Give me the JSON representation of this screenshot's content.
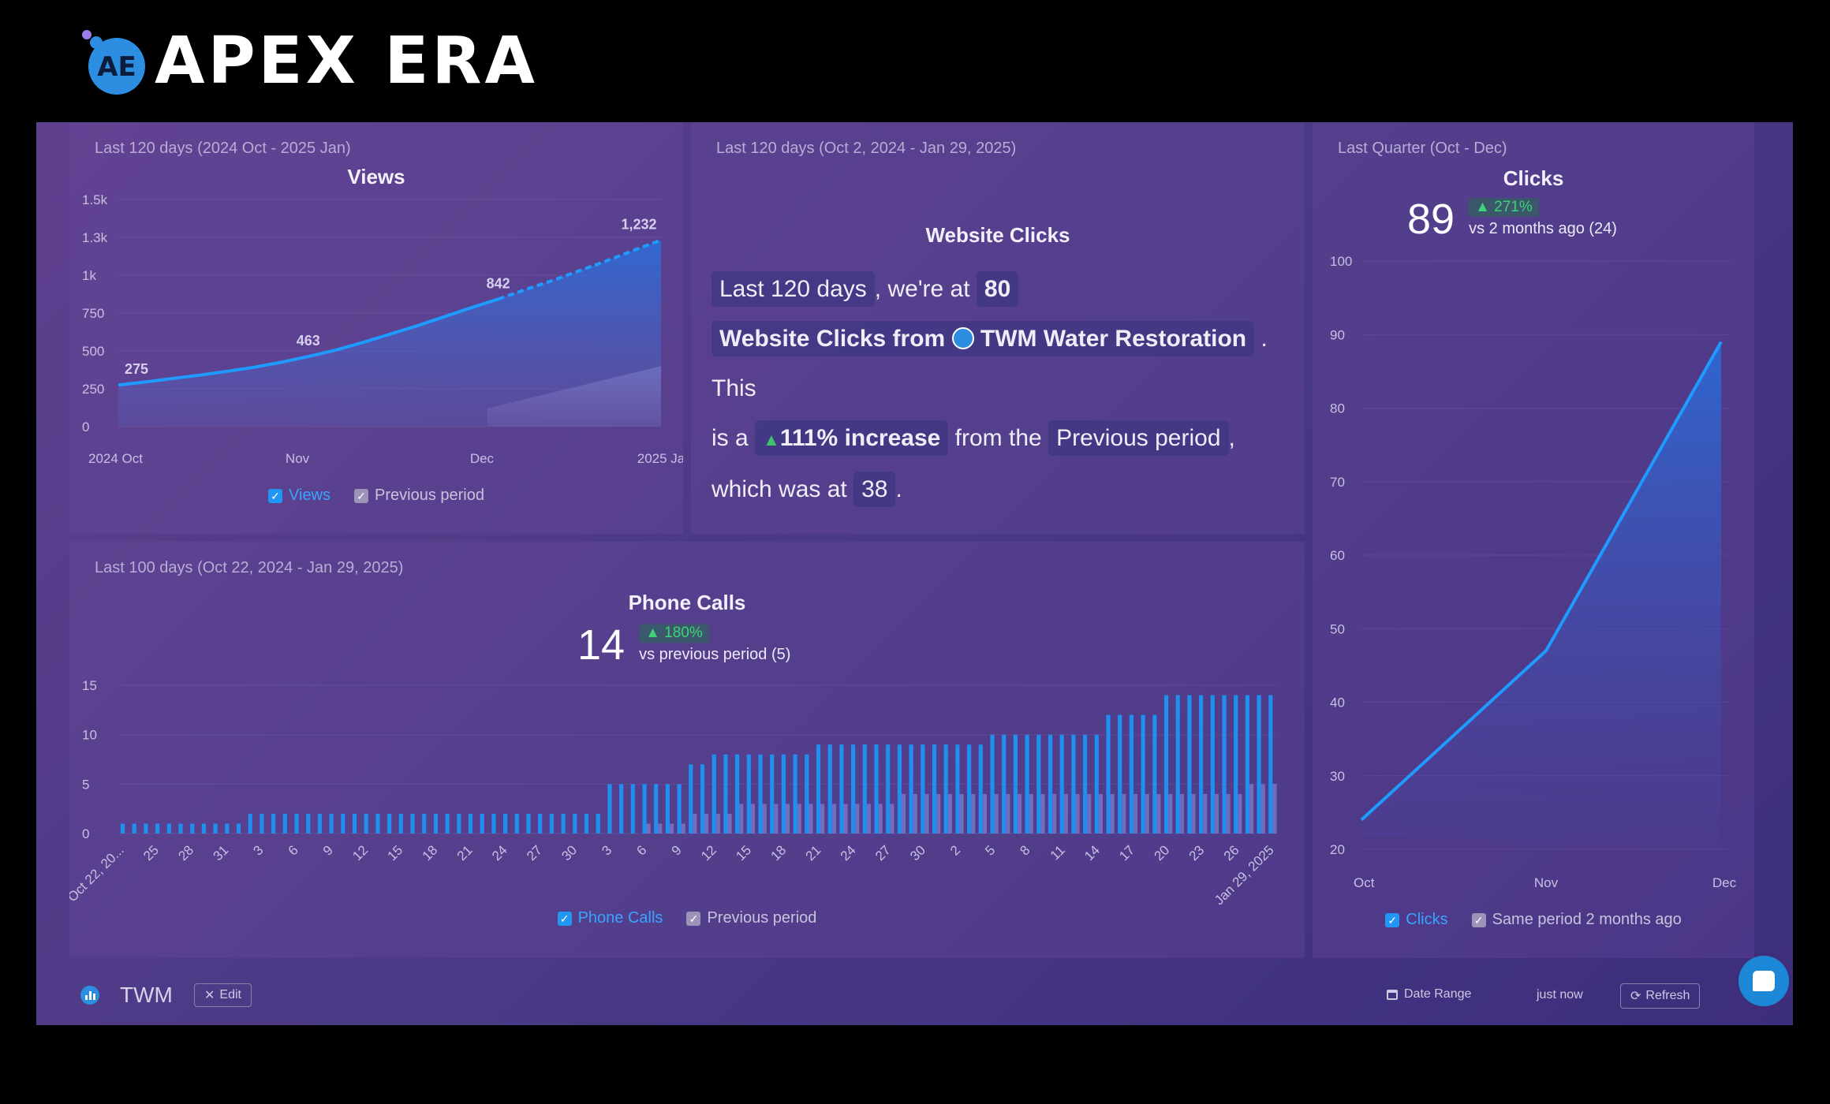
{
  "brand": {
    "name": "APEX ERA",
    "mark": "AE"
  },
  "views_card": {
    "subtitle": "Last 120 days (2024 Oct - 2025 Jan)",
    "title": "Views",
    "legend": {
      "primary": "Views",
      "previous": "Previous period"
    }
  },
  "clicks_narrative": {
    "subtitle": "Last 120 days (Oct 2, 2024 - Jan 29, 2025)",
    "title": "Website Clicks",
    "period": "Last 120 days",
    "t1": ", we're at",
    "value": "80",
    "metric": "Website Clicks from",
    "source": "TWM Water Restoration",
    "t2": ". This",
    "t3": "is a",
    "increase": "111% increase",
    "t4": "from the",
    "prev_label": "Previous period",
    "t5": ",",
    "t6": "which was at",
    "prev_value": "38",
    "t7": "."
  },
  "clicks_card": {
    "subtitle": "Last Quarter (Oct - Dec)",
    "title": "Clicks",
    "value": "89",
    "change": "▲ 271%",
    "compare": "vs 2 months ago (24)",
    "legend": {
      "primary": "Clicks",
      "previous": "Same period 2 months ago"
    }
  },
  "phone_card": {
    "subtitle": "Last 100 days (Oct 22, 2024 - Jan 29, 2025)",
    "title": "Phone Calls",
    "value": "14",
    "change": "▲ 180%",
    "compare": "vs previous period (5)",
    "legend": {
      "primary": "Phone Calls",
      "previous": "Previous period"
    }
  },
  "footer": {
    "dashboard_name": "TWM",
    "edit_label": "Edit",
    "date_range_label": "Date Range",
    "updated": "just now",
    "refresh_label": "Refresh"
  },
  "colors": {
    "accent": "#2196f3",
    "positive": "#3cc36b",
    "bg": "#4b3a86"
  },
  "chart_data": [
    {
      "type": "area",
      "title": "Views",
      "x_ticks": [
        "2024 Oct",
        "Nov",
        "Dec",
        "2025 Ja"
      ],
      "y_ticks": [
        "0",
        "250",
        "500",
        "750",
        "1k",
        "1.3k",
        "1.5k"
      ],
      "ylim": [
        0,
        1500
      ],
      "data_labels": [
        "275",
        "463",
        "842",
        "1,232"
      ],
      "series": [
        {
          "name": "Views",
          "x": [
            0,
            0.05,
            0.1,
            0.15,
            0.2,
            0.25,
            0.3,
            0.35,
            0.4,
            0.45,
            0.5,
            0.55,
            0.6,
            0.65,
            0.7,
            0.75,
            0.8,
            0.85,
            0.9,
            0.95,
            1.0
          ],
          "values": [
            275,
            295,
            318,
            340,
            365,
            392,
            425,
            463,
            505,
            555,
            610,
            665,
            725,
            785,
            842,
            905,
            965,
            1030,
            1095,
            1165,
            1232
          ]
        },
        {
          "name": "Previous period",
          "x": [
            0.68,
            1.0
          ],
          "values": [
            120,
            400
          ]
        }
      ],
      "legend": "bottom",
      "grid": true
    },
    {
      "type": "area",
      "title": "Clicks",
      "categories": [
        "Oct",
        "Nov",
        "Dec"
      ],
      "y_ticks": [
        "20",
        "30",
        "40",
        "50",
        "60",
        "70",
        "80",
        "90",
        "100"
      ],
      "ylim": [
        20,
        100
      ],
      "series": [
        {
          "name": "Clicks",
          "values": [
            24,
            47,
            89
          ]
        }
      ],
      "legend": "bottom",
      "grid": true
    },
    {
      "type": "bar",
      "title": "Phone Calls",
      "x_tick_labels": [
        "Oct 22, 20...",
        "25",
        "28",
        "31",
        "3",
        "6",
        "9",
        "12",
        "15",
        "18",
        "21",
        "24",
        "27",
        "30",
        "3",
        "6",
        "9",
        "12",
        "15",
        "18",
        "21",
        "24",
        "27",
        "30",
        "2",
        "5",
        "8",
        "11",
        "14",
        "17",
        "20",
        "23",
        "26",
        "Jan 29, 2025"
      ],
      "y_ticks": [
        "0",
        "5",
        "10",
        "15"
      ],
      "ylim": [
        0,
        15
      ],
      "series": [
        {
          "name": "Phone Calls",
          "values": [
            1,
            1,
            1,
            1,
            1,
            1,
            1,
            1,
            1,
            1,
            1,
            2,
            2,
            2,
            2,
            2,
            2,
            2,
            2,
            2,
            2,
            2,
            2,
            2,
            2,
            2,
            2,
            2,
            2,
            2,
            2,
            2,
            2,
            2,
            2,
            2,
            2,
            2,
            2,
            2,
            2,
            2,
            5,
            5,
            5,
            5,
            5,
            5,
            5,
            7,
            7,
            8,
            8,
            8,
            8,
            8,
            8,
            8,
            8,
            8,
            9,
            9,
            9,
            9,
            9,
            9,
            9,
            9,
            9,
            9,
            9,
            9,
            9,
            9,
            9,
            10,
            10,
            10,
            10,
            10,
            10,
            10,
            10,
            10,
            10,
            12,
            12,
            12,
            12,
            12,
            14,
            14,
            14,
            14,
            14,
            14,
            14,
            14,
            14,
            14
          ]
        },
        {
          "name": "Previous period",
          "values": [
            0,
            0,
            0,
            0,
            0,
            0,
            0,
            0,
            0,
            0,
            0,
            0,
            0,
            0,
            0,
            0,
            0,
            0,
            0,
            0,
            0,
            0,
            0,
            0,
            0,
            0,
            0,
            0,
            0,
            0,
            0,
            0,
            0,
            0,
            0,
            0,
            0,
            0,
            0,
            0,
            0,
            0,
            0,
            0,
            0,
            1,
            1,
            1,
            1,
            2,
            2,
            2,
            2,
            3,
            3,
            3,
            3,
            3,
            3,
            3,
            3,
            3,
            3,
            3,
            3,
            3,
            3,
            4,
            4,
            4,
            4,
            4,
            4,
            4,
            4,
            4,
            4,
            4,
            4,
            4,
            4,
            4,
            4,
            4,
            4,
            4,
            4,
            4,
            4,
            4,
            4,
            4,
            4,
            4,
            4,
            4,
            4,
            5,
            5,
            5
          ]
        }
      ],
      "legend": "bottom",
      "grid": true
    }
  ]
}
